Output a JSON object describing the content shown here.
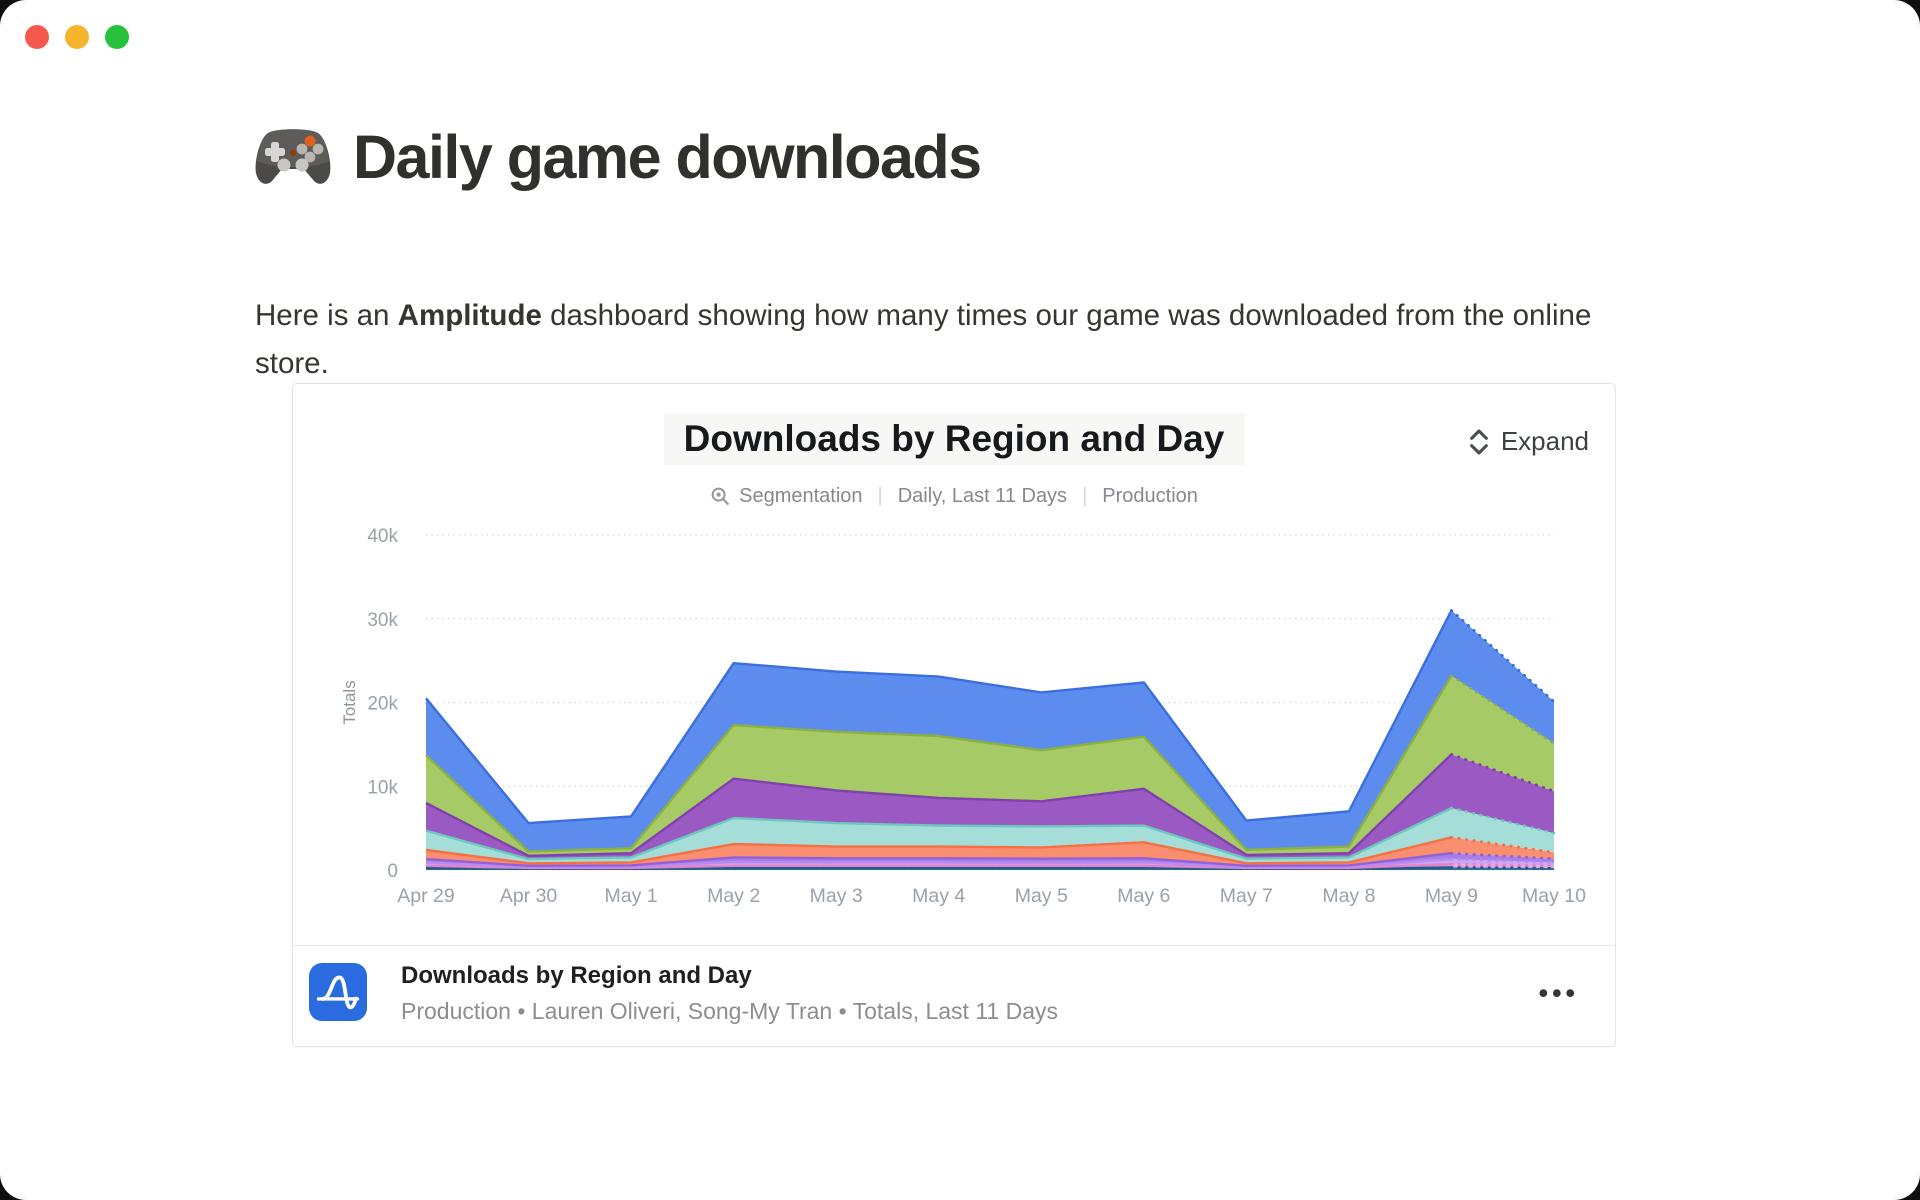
{
  "window": {
    "controls": [
      {
        "name": "close",
        "color": "#f5594e"
      },
      {
        "name": "minimize",
        "color": "#f6b42c"
      },
      {
        "name": "zoom",
        "color": "#27c23d"
      }
    ]
  },
  "page": {
    "emoji_icon": "gamepad",
    "title": "Daily game downloads",
    "intro": {
      "pre": "Here is an ",
      "bold": "Amplitude",
      "post": " dashboard showing how many times our game was downloaded from the online store."
    }
  },
  "card": {
    "chart_title": "Downloads by Region and Day",
    "expand_label": "Expand",
    "expand_icon": "chevrons-up-down",
    "meta": {
      "segmentation_icon": "magnifier-segmentation",
      "type_label": "Segmentation",
      "range_label": "Daily, Last 11 Days",
      "env_label": "Production"
    },
    "footer": {
      "logo_icon": "amplitude-logo",
      "logo_color": "#2a6be0",
      "title": "Downloads by Region and Day",
      "subtitle": "Production • Lauren Oliveri, Song-My Tran • Totals, Last 11 Days",
      "menu_icon": "ellipsis",
      "menu_glyph": "•••"
    }
  },
  "chart_data": {
    "type": "area",
    "stacked": true,
    "title": "Downloads by Region and Day",
    "ylabel": "Totals",
    "xlabel": "",
    "x": [
      "Apr 29",
      "Apr 30",
      "May 1",
      "May 2",
      "May 3",
      "May 4",
      "May 5",
      "May 6",
      "May 7",
      "May 8",
      "May 9",
      "May 10"
    ],
    "yticks": [
      "0",
      "10k",
      "20k",
      "30k",
      "40k"
    ],
    "ytick_values_k": [
      0,
      10,
      20,
      30,
      40
    ],
    "ylim_k": [
      0,
      40
    ],
    "grid": "dotted-horizontal",
    "legend": "none",
    "units": "thousands of downloads",
    "last_segment_style": "dotted (May 9 to May 10)",
    "series": [
      {
        "name": "navy",
        "fill": "#2e7097",
        "stroke": "#1e5e86",
        "values_k": [
          0.25,
          0.15,
          0.15,
          0.25,
          0.25,
          0.25,
          0.25,
          0.25,
          0.15,
          0.15,
          0.3,
          0.25
        ]
      },
      {
        "name": "pink",
        "fill": "#efa0dc",
        "stroke": "#e57fca",
        "values_k": [
          0.25,
          0.1,
          0.1,
          0.25,
          0.25,
          0.25,
          0.25,
          0.25,
          0.1,
          0.1,
          0.4,
          0.25
        ]
      },
      {
        "name": "lavender",
        "fill": "#cda6f5",
        "stroke": "#b98bee",
        "values_k": [
          0.4,
          0.1,
          0.15,
          0.45,
          0.4,
          0.4,
          0.35,
          0.4,
          0.1,
          0.15,
          0.6,
          0.4
        ]
      },
      {
        "name": "violet",
        "fill": "#a87ee8",
        "stroke": "#9161db",
        "values_k": [
          0.4,
          0.15,
          0.15,
          0.55,
          0.5,
          0.5,
          0.5,
          0.5,
          0.15,
          0.15,
          0.7,
          0.45
        ]
      },
      {
        "name": "salmon",
        "fill": "#fa8f70",
        "stroke": "#f77044",
        "values_k": [
          1.1,
          0.3,
          0.35,
          1.6,
          1.4,
          1.4,
          1.35,
          1.9,
          0.3,
          0.35,
          1.9,
          0.75
        ]
      },
      {
        "name": "teal",
        "fill": "#a5ded9",
        "stroke": "#6cc8bd",
        "values_k": [
          2.3,
          0.5,
          0.6,
          3.1,
          2.8,
          2.5,
          2.5,
          2.0,
          0.55,
          0.6,
          3.5,
          2.3
        ]
      },
      {
        "name": "purple",
        "fill": "#9b59c4",
        "stroke": "#8140ad",
        "values_k": [
          3.3,
          0.4,
          0.5,
          4.7,
          3.9,
          3.3,
          3.0,
          4.4,
          0.45,
          0.5,
          6.4,
          5.0
        ]
      },
      {
        "name": "green",
        "fill": "#a6ca66",
        "stroke": "#8db13e",
        "values_k": [
          5.7,
          0.5,
          0.6,
          6.4,
          7.0,
          7.4,
          6.1,
          6.2,
          0.6,
          0.8,
          9.4,
          5.7
        ]
      },
      {
        "name": "blue",
        "fill": "#5c8cee",
        "stroke": "#3b6ede",
        "values_k": [
          6.8,
          3.4,
          3.8,
          7.4,
          7.2,
          7.1,
          6.9,
          6.5,
          3.5,
          4.2,
          7.8,
          5.0
        ]
      }
    ]
  }
}
